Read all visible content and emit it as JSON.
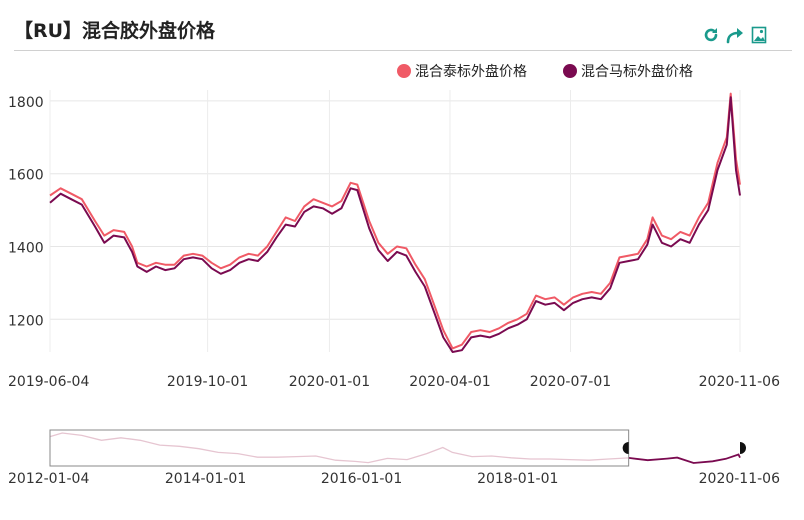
{
  "header": {
    "title": "【RU】混合胶外盘价格"
  },
  "toolbar": {
    "icons": [
      "refresh-icon",
      "share-icon",
      "save-image-icon"
    ],
    "accent": "#1a9a8c"
  },
  "chart_data": {
    "type": "line",
    "title": "【RU】混合胶外盘价格",
    "xlabel": "",
    "ylabel": "",
    "x_range": [
      "2019-06-04",
      "2020-11-06"
    ],
    "ylim": [
      1110,
      1830
    ],
    "y_ticks": [
      1200,
      1400,
      1600,
      1800
    ],
    "x_ticks": [
      "2019-06-04",
      "2019-10-01",
      "2020-01-01",
      "2020-04-01",
      "2020-07-01",
      "2020-11-06"
    ],
    "grid": true,
    "legend_position": "top-right",
    "series": [
      {
        "name": "混合泰标外盘价格",
        "color": "#f05a66",
        "points": [
          [
            "2019-06-04",
            1540
          ],
          [
            "2019-06-12",
            1560
          ],
          [
            "2019-06-20",
            1545
          ],
          [
            "2019-06-28",
            1530
          ],
          [
            "2019-07-08",
            1470
          ],
          [
            "2019-07-15",
            1430
          ],
          [
            "2019-07-22",
            1445
          ],
          [
            "2019-07-30",
            1440
          ],
          [
            "2019-08-05",
            1400
          ],
          [
            "2019-08-09",
            1355
          ],
          [
            "2019-08-16",
            1345
          ],
          [
            "2019-08-23",
            1355
          ],
          [
            "2019-08-30",
            1350
          ],
          [
            "2019-09-06",
            1350
          ],
          [
            "2019-09-13",
            1375
          ],
          [
            "2019-09-20",
            1380
          ],
          [
            "2019-09-27",
            1375
          ],
          [
            "2019-10-04",
            1355
          ],
          [
            "2019-10-11",
            1340
          ],
          [
            "2019-10-18",
            1350
          ],
          [
            "2019-10-25",
            1370
          ],
          [
            "2019-11-01",
            1380
          ],
          [
            "2019-11-08",
            1375
          ],
          [
            "2019-11-15",
            1400
          ],
          [
            "2019-11-22",
            1440
          ],
          [
            "2019-11-29",
            1480
          ],
          [
            "2019-12-06",
            1470
          ],
          [
            "2019-12-13",
            1510
          ],
          [
            "2019-12-20",
            1530
          ],
          [
            "2019-12-27",
            1520
          ],
          [
            "2020-01-03",
            1510
          ],
          [
            "2020-01-10",
            1525
          ],
          [
            "2020-01-17",
            1575
          ],
          [
            "2020-01-22",
            1570
          ],
          [
            "2020-01-31",
            1470
          ],
          [
            "2020-02-07",
            1410
          ],
          [
            "2020-02-14",
            1380
          ],
          [
            "2020-02-21",
            1400
          ],
          [
            "2020-02-28",
            1395
          ],
          [
            "2020-03-06",
            1350
          ],
          [
            "2020-03-13",
            1310
          ],
          [
            "2020-03-20",
            1240
          ],
          [
            "2020-03-27",
            1170
          ],
          [
            "2020-04-03",
            1120
          ],
          [
            "2020-04-10",
            1130
          ],
          [
            "2020-04-17",
            1165
          ],
          [
            "2020-04-24",
            1170
          ],
          [
            "2020-05-01",
            1165
          ],
          [
            "2020-05-08",
            1175
          ],
          [
            "2020-05-15",
            1190
          ],
          [
            "2020-05-22",
            1200
          ],
          [
            "2020-05-29",
            1215
          ],
          [
            "2020-06-05",
            1265
          ],
          [
            "2020-06-12",
            1255
          ],
          [
            "2020-06-19",
            1260
          ],
          [
            "2020-06-26",
            1240
          ],
          [
            "2020-07-03",
            1260
          ],
          [
            "2020-07-10",
            1270
          ],
          [
            "2020-07-17",
            1275
          ],
          [
            "2020-07-24",
            1270
          ],
          [
            "2020-07-31",
            1300
          ],
          [
            "2020-08-07",
            1370
          ],
          [
            "2020-08-14",
            1375
          ],
          [
            "2020-08-21",
            1380
          ],
          [
            "2020-08-28",
            1420
          ],
          [
            "2020-09-01",
            1480
          ],
          [
            "2020-09-08",
            1430
          ],
          [
            "2020-09-15",
            1420
          ],
          [
            "2020-09-22",
            1440
          ],
          [
            "2020-09-29",
            1430
          ],
          [
            "2020-10-06",
            1480
          ],
          [
            "2020-10-13",
            1520
          ],
          [
            "2020-10-20",
            1630
          ],
          [
            "2020-10-27",
            1700
          ],
          [
            "2020-10-30",
            1820
          ],
          [
            "2020-11-03",
            1640
          ],
          [
            "2020-11-06",
            1570
          ]
        ]
      },
      {
        "name": "混合马标外盘价格",
        "color": "#7a0a50",
        "points": [
          [
            "2019-06-04",
            1520
          ],
          [
            "2019-06-12",
            1545
          ],
          [
            "2019-06-20",
            1530
          ],
          [
            "2019-06-28",
            1515
          ],
          [
            "2019-07-08",
            1455
          ],
          [
            "2019-07-15",
            1410
          ],
          [
            "2019-07-22",
            1430
          ],
          [
            "2019-07-30",
            1425
          ],
          [
            "2019-08-05",
            1385
          ],
          [
            "2019-08-09",
            1345
          ],
          [
            "2019-08-16",
            1330
          ],
          [
            "2019-08-23",
            1345
          ],
          [
            "2019-08-30",
            1335
          ],
          [
            "2019-09-06",
            1340
          ],
          [
            "2019-09-13",
            1365
          ],
          [
            "2019-09-20",
            1370
          ],
          [
            "2019-09-27",
            1365
          ],
          [
            "2019-10-04",
            1340
          ],
          [
            "2019-10-11",
            1325
          ],
          [
            "2019-10-18",
            1335
          ],
          [
            "2019-10-25",
            1355
          ],
          [
            "2019-11-01",
            1365
          ],
          [
            "2019-11-08",
            1360
          ],
          [
            "2019-11-15",
            1385
          ],
          [
            "2019-11-22",
            1425
          ],
          [
            "2019-11-29",
            1460
          ],
          [
            "2019-12-06",
            1455
          ],
          [
            "2019-12-13",
            1495
          ],
          [
            "2019-12-20",
            1510
          ],
          [
            "2019-12-27",
            1505
          ],
          [
            "2020-01-03",
            1490
          ],
          [
            "2020-01-10",
            1505
          ],
          [
            "2020-01-17",
            1560
          ],
          [
            "2020-01-22",
            1555
          ],
          [
            "2020-01-31",
            1450
          ],
          [
            "2020-02-07",
            1390
          ],
          [
            "2020-02-14",
            1360
          ],
          [
            "2020-02-21",
            1385
          ],
          [
            "2020-02-28",
            1375
          ],
          [
            "2020-03-06",
            1330
          ],
          [
            "2020-03-13",
            1290
          ],
          [
            "2020-03-20",
            1220
          ],
          [
            "2020-03-27",
            1150
          ],
          [
            "2020-04-03",
            1110
          ],
          [
            "2020-04-10",
            1115
          ],
          [
            "2020-04-17",
            1150
          ],
          [
            "2020-04-24",
            1155
          ],
          [
            "2020-05-01",
            1150
          ],
          [
            "2020-05-08",
            1160
          ],
          [
            "2020-05-15",
            1175
          ],
          [
            "2020-05-22",
            1185
          ],
          [
            "2020-05-29",
            1200
          ],
          [
            "2020-06-05",
            1250
          ],
          [
            "2020-06-12",
            1240
          ],
          [
            "2020-06-19",
            1245
          ],
          [
            "2020-06-26",
            1225
          ],
          [
            "2020-07-03",
            1245
          ],
          [
            "2020-07-10",
            1255
          ],
          [
            "2020-07-17",
            1260
          ],
          [
            "2020-07-24",
            1255
          ],
          [
            "2020-07-31",
            1285
          ],
          [
            "2020-08-07",
            1355
          ],
          [
            "2020-08-14",
            1360
          ],
          [
            "2020-08-21",
            1365
          ],
          [
            "2020-08-28",
            1405
          ],
          [
            "2020-09-01",
            1460
          ],
          [
            "2020-09-08",
            1410
          ],
          [
            "2020-09-15",
            1400
          ],
          [
            "2020-09-22",
            1420
          ],
          [
            "2020-09-29",
            1410
          ],
          [
            "2020-10-06",
            1460
          ],
          [
            "2020-10-13",
            1500
          ],
          [
            "2020-10-20",
            1610
          ],
          [
            "2020-10-27",
            1680
          ],
          [
            "2020-10-30",
            1810
          ],
          [
            "2020-11-03",
            1610
          ],
          [
            "2020-11-06",
            1540
          ]
        ]
      }
    ],
    "navigator": {
      "range": [
        "2012-01-04",
        "2020-11-06"
      ],
      "x_ticks": [
        "2012-01-04",
        "2014-01-01",
        "2016-01-01",
        "2018-01-01",
        "2020-11-06"
      ],
      "selected": [
        "2019-06-04",
        "2020-11-06"
      ],
      "overview_points": [
        [
          "2012-01-04",
          3300
        ],
        [
          "2012-03-01",
          3600
        ],
        [
          "2012-06-01",
          3400
        ],
        [
          "2012-09-01",
          3000
        ],
        [
          "2012-12-01",
          3200
        ],
        [
          "2013-03-01",
          3000
        ],
        [
          "2013-06-01",
          2600
        ],
        [
          "2013-09-01",
          2500
        ],
        [
          "2013-12-01",
          2300
        ],
        [
          "2014-03-01",
          2000
        ],
        [
          "2014-06-01",
          1900
        ],
        [
          "2014-09-01",
          1600
        ],
        [
          "2014-12-01",
          1600
        ],
        [
          "2015-03-01",
          1650
        ],
        [
          "2015-06-01",
          1700
        ],
        [
          "2015-09-01",
          1350
        ],
        [
          "2015-12-01",
          1250
        ],
        [
          "2016-02-01",
          1150
        ],
        [
          "2016-05-01",
          1500
        ],
        [
          "2016-08-01",
          1400
        ],
        [
          "2016-11-01",
          1900
        ],
        [
          "2017-01-15",
          2400
        ],
        [
          "2017-03-01",
          2000
        ],
        [
          "2017-06-01",
          1650
        ],
        [
          "2017-09-01",
          1700
        ],
        [
          "2017-12-01",
          1550
        ],
        [
          "2018-03-01",
          1450
        ],
        [
          "2018-06-01",
          1450
        ],
        [
          "2018-09-01",
          1400
        ],
        [
          "2018-12-01",
          1350
        ],
        [
          "2019-03-01",
          1450
        ],
        [
          "2019-06-04",
          1540
        ],
        [
          "2019-09-01",
          1350
        ],
        [
          "2019-12-01",
          1480
        ],
        [
          "2020-01-17",
          1570
        ],
        [
          "2020-04-03",
          1120
        ],
        [
          "2020-07-01",
          1260
        ],
        [
          "2020-09-01",
          1470
        ],
        [
          "2020-10-30",
          1820
        ],
        [
          "2020-11-06",
          1570
        ]
      ]
    }
  }
}
